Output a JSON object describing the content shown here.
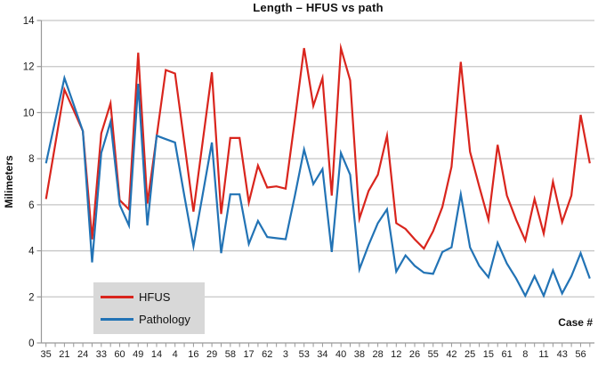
{
  "chart_data": {
    "type": "line",
    "title": "Length – HFUS vs path",
    "xlabel": "Case #",
    "ylabel": "Milimeters",
    "ylim": [
      0,
      14
    ],
    "ytick_interval": 2,
    "ytick_labels": [
      "0",
      "2",
      "4",
      "6",
      "8",
      "10",
      "12",
      "14"
    ],
    "x_is_categorical": true,
    "n_points": 60,
    "x_label_interval": 2,
    "x_tick_labels": [
      "35",
      "21",
      "24",
      "33",
      "60",
      "49",
      "14",
      "4",
      "16",
      "29",
      "58",
      "17",
      "62",
      "3",
      "53",
      "34",
      "40",
      "38",
      "28",
      "12",
      "26",
      "55",
      "42",
      "25",
      "15",
      "61",
      "8",
      "11",
      "43",
      "56"
    ],
    "grid": "horizontal",
    "legend": {
      "position": "bottom-left",
      "background": "#d8d8d8",
      "entries": [
        "HFUS",
        "Pathology"
      ]
    },
    "series": [
      {
        "name": "HFUS",
        "color": "#d9251d",
        "values": [
          6.25,
          8.6,
          11.0,
          10.1,
          9.2,
          4.5,
          9.1,
          10.4,
          6.2,
          5.8,
          12.6,
          6.05,
          8.95,
          11.85,
          11.7,
          8.7,
          5.7,
          8.75,
          11.75,
          5.6,
          8.9,
          8.9,
          6.1,
          7.7,
          6.75,
          6.8,
          6.7,
          9.7,
          12.8,
          10.3,
          11.5,
          6.4,
          12.8,
          11.4,
          5.4,
          6.6,
          7.3,
          9.0,
          5.2,
          4.95,
          4.5,
          4.1,
          4.85,
          5.9,
          7.65,
          12.2,
          8.3,
          6.8,
          5.35,
          8.6,
          6.4,
          5.35,
          4.45,
          6.25,
          4.75,
          7.0,
          5.25,
          6.4,
          9.9,
          7.8
        ]
      },
      {
        "name": "Pathology",
        "color": "#2273b5",
        "values": [
          7.8,
          9.65,
          11.5,
          10.35,
          9.2,
          3.5,
          8.25,
          9.6,
          6.0,
          5.1,
          11.25,
          5.1,
          9.0,
          8.85,
          8.7,
          6.4,
          4.2,
          6.45,
          8.7,
          3.9,
          6.45,
          6.45,
          4.3,
          5.3,
          4.6,
          4.55,
          4.5,
          6.4,
          8.4,
          6.9,
          7.55,
          3.95,
          8.25,
          7.3,
          3.2,
          4.25,
          5.2,
          5.8,
          3.1,
          3.8,
          3.35,
          3.05,
          3.0,
          3.95,
          4.15,
          6.45,
          4.15,
          3.35,
          2.85,
          4.35,
          3.45,
          2.8,
          2.05,
          2.9,
          2.05,
          3.15,
          2.15,
          2.9,
          3.9,
          2.8
        ]
      }
    ],
    "colors": {
      "gridline": "#c6c6c6",
      "axis": "#999999",
      "tick": "#999999",
      "tick_label": "#1a1a1a"
    }
  }
}
